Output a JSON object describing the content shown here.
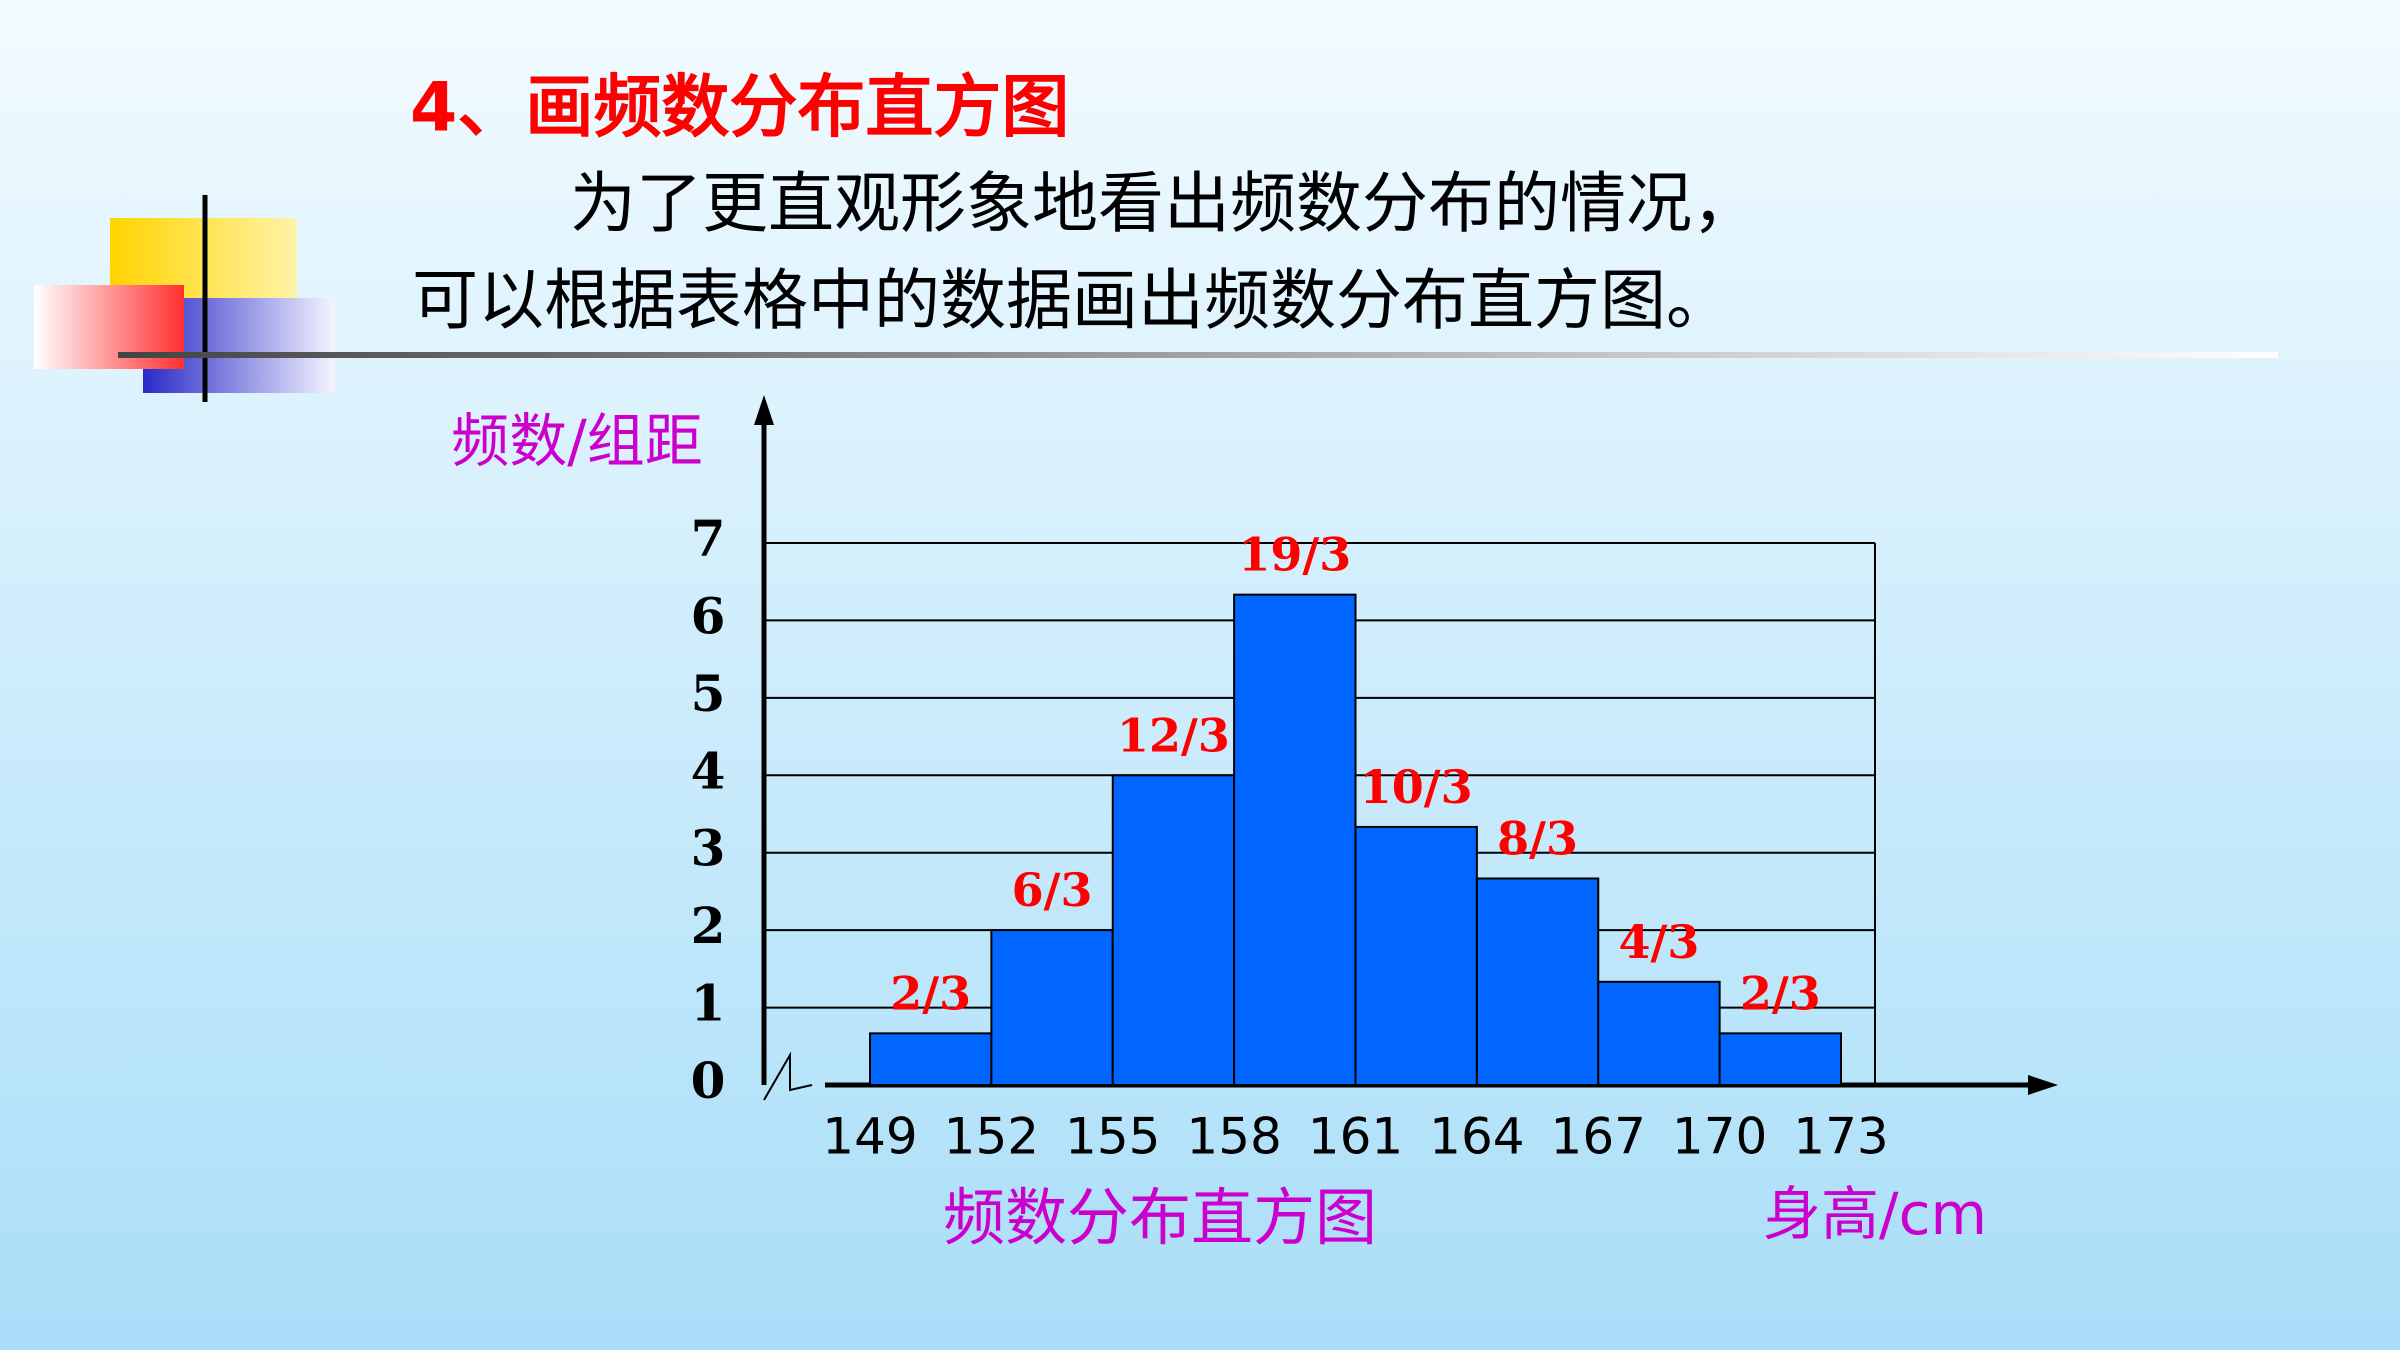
{
  "slide": {
    "heading": "4、画频数分布直方图",
    "text": [
      "为了更直观形象地看出频数分布的情况，",
      "可以根据表格中的数据画出频数分布直方图。"
    ]
  },
  "chart_data": {
    "type": "histogram",
    "title": "频数分布直方图",
    "x_label": "身高/cm",
    "y_label": "频数/组距",
    "bins": [
      149,
      152,
      155,
      158,
      161,
      164,
      167,
      170,
      173
    ],
    "values": [
      0.667,
      2,
      4,
      6.333,
      3.333,
      2.667,
      1.333,
      0.667
    ],
    "value_labels": [
      "2/3",
      "6/3",
      "12/3",
      "19/3",
      "10/3",
      "8/3",
      "4/3",
      "2/3"
    ],
    "color": "#0066ff",
    "xlim": [
      149,
      173
    ],
    "ylim": [
      0,
      7
    ],
    "yticks": [
      0,
      1,
      2,
      3,
      4,
      5,
      6,
      7
    ],
    "grid": true
  }
}
